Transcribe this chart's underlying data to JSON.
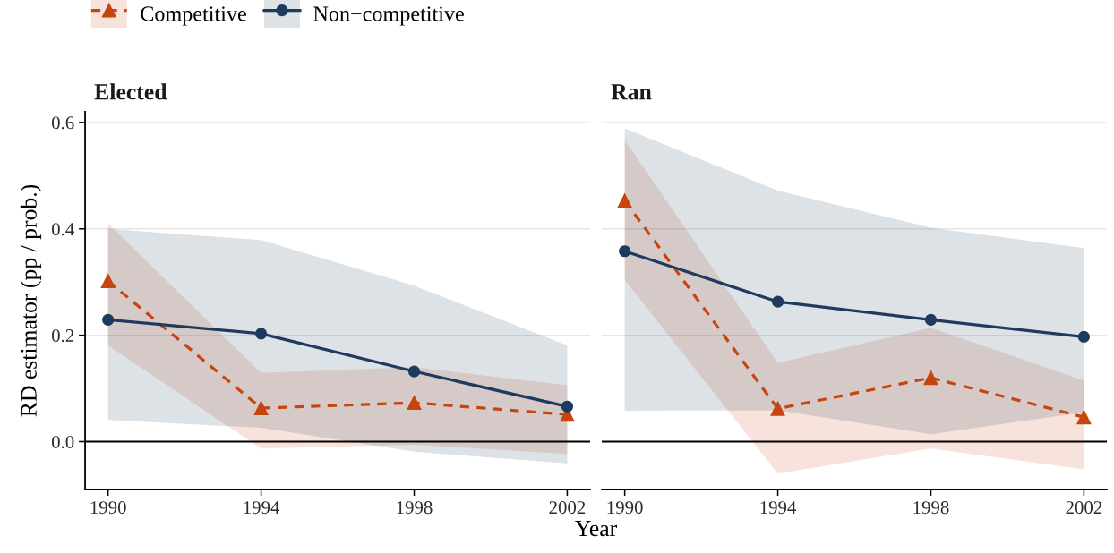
{
  "chart_data": [
    {
      "type": "line",
      "title": "Elected",
      "xlabel": "Year",
      "ylabel": "RD estimator (pp / prob.)",
      "x": [
        1990,
        1994,
        1998,
        2002
      ],
      "series": [
        {
          "name": "Competitive",
          "color": "#c8440f",
          "values": [
            0.302,
            0.063,
            0.073,
            0.051
          ],
          "lower": [
            0.181,
            -0.013,
            -0.006,
            -0.023
          ],
          "upper": [
            0.41,
            0.129,
            0.14,
            0.106
          ],
          "marker": "triangle",
          "line_style": "dashed"
        },
        {
          "name": "Non−competitive",
          "color": "#1e3a5f",
          "values": [
            0.229,
            0.203,
            0.132,
            0.066
          ],
          "lower": [
            0.041,
            0.026,
            -0.019,
            -0.041
          ],
          "upper": [
            0.4,
            0.379,
            0.293,
            0.181
          ],
          "marker": "circle",
          "line_style": "solid"
        }
      ],
      "xlim": [
        1989.4,
        2002.6
      ],
      "xticks": [
        1990,
        1994,
        1998,
        2002
      ],
      "ylim": [
        -0.09,
        0.62
      ],
      "yticks": [
        {
          "value": 0,
          "label": "0.0"
        },
        0.2,
        0.4,
        0.6
      ],
      "grid": "y",
      "legend": "top left",
      "ref_lines": [
        {
          "axis": "y",
          "value": 0,
          "color": "#000000"
        }
      ]
    },
    {
      "type": "line",
      "title": "Ran",
      "x": [
        1990,
        1994,
        1998,
        2002
      ],
      "series": [
        {
          "color": "#c8440f",
          "values": [
            0.453,
            0.062,
            0.12,
            0.046
          ],
          "lower": [
            0.304,
            -0.06,
            -0.013,
            -0.052
          ],
          "upper": [
            0.567,
            0.148,
            0.214,
            0.115
          ],
          "marker": "triangle",
          "line_style": "dashed"
        },
        {
          "color": "#1e3a5f",
          "values": [
            0.358,
            0.263,
            0.229,
            0.197
          ],
          "lower": [
            0.058,
            0.059,
            0.014,
            0.055
          ],
          "upper": [
            0.589,
            0.472,
            0.402,
            0.364
          ],
          "marker": "circle",
          "line_style": "solid"
        }
      ],
      "xlim": [
        1989.4,
        2002.6
      ],
      "xticks": [
        1990,
        1994,
        1998,
        2002
      ],
      "yticks": [
        0,
        0.2,
        0.4,
        0.6
      ],
      "grid": "y",
      "tick_labels": "x",
      "ref_lines": [
        {
          "axis": "y",
          "value": 0,
          "color": "#000000"
        }
      ]
    }
  ]
}
